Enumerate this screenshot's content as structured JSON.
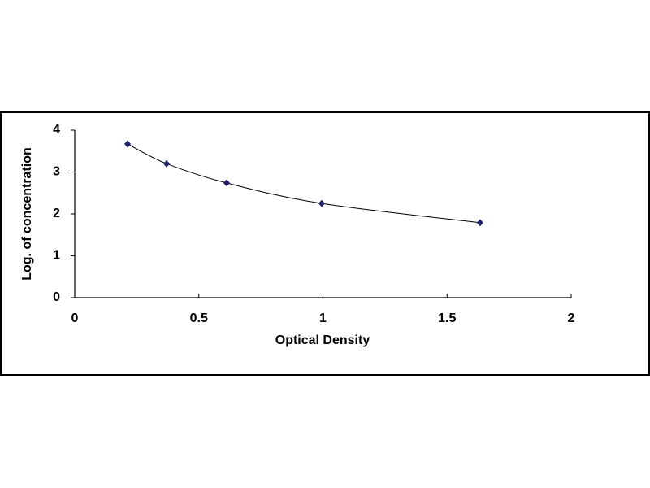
{
  "chart_data": {
    "type": "scatter",
    "x_label": "Optical Density",
    "y_label": "Log. of concentration",
    "series": [
      {
        "color": "#1f1f6b",
        "line_color": "#000000",
        "smooth": true,
        "x": [
          0.213,
          0.37,
          0.612,
          0.995,
          1.633
        ],
        "values": [
          3.67,
          3.2,
          2.74,
          2.25,
          1.79
        ]
      }
    ],
    "xlim": [
      0,
      2
    ],
    "xticks": [
      0,
      0.5,
      1,
      1.5,
      2
    ],
    "ylim": [
      0,
      4
    ],
    "yticks": [
      0,
      1,
      2,
      3,
      4
    ],
    "grid": false
  }
}
